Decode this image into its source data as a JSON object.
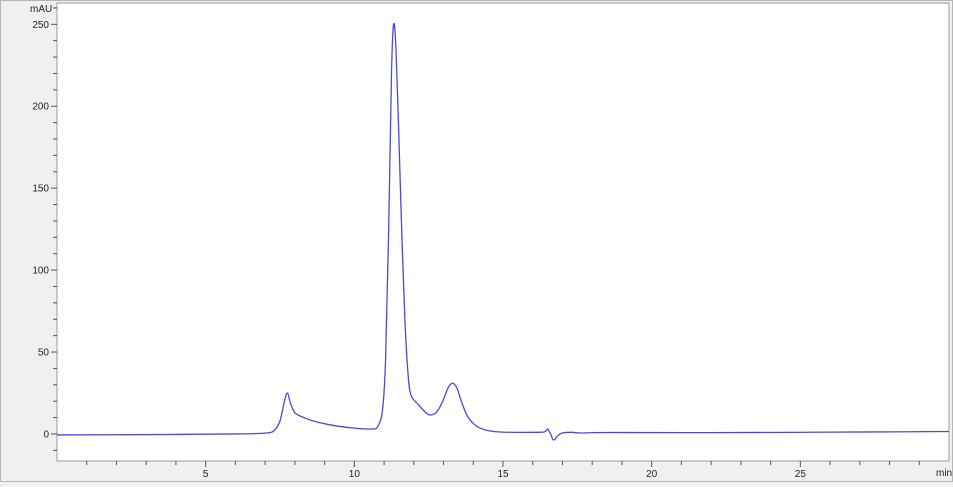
{
  "chart_data": {
    "type": "line",
    "title": "",
    "xlabel": "min",
    "ylabel": "mAU",
    "xlim": [
      0,
      30
    ],
    "ylim": [
      -16.5,
      263
    ],
    "x_ticks": [
      5,
      10,
      15,
      20,
      25
    ],
    "y_ticks": [
      0,
      50,
      100,
      150,
      200,
      250
    ],
    "x_minor_step": 1,
    "y_minor_step": 10,
    "grid": false,
    "line_color": "#4a4ad8",
    "series": [
      {
        "points": [
          [
            0,
            -0.6
          ],
          [
            3,
            -0.4
          ],
          [
            6,
            0
          ],
          [
            7.0,
            0.5
          ],
          [
            7.3,
            2
          ],
          [
            7.5,
            8
          ],
          [
            7.65,
            20
          ],
          [
            7.75,
            25
          ],
          [
            7.85,
            19
          ],
          [
            8.0,
            13
          ],
          [
            8.3,
            10
          ],
          [
            8.7,
            7.5
          ],
          [
            9.2,
            5.5
          ],
          [
            9.9,
            3.7
          ],
          [
            10.6,
            3
          ],
          [
            10.8,
            5
          ],
          [
            10.95,
            15
          ],
          [
            11.05,
            45
          ],
          [
            11.15,
            120
          ],
          [
            11.25,
            220
          ],
          [
            11.32,
            250
          ],
          [
            11.4,
            235
          ],
          [
            11.5,
            180
          ],
          [
            11.6,
            120
          ],
          [
            11.7,
            70
          ],
          [
            11.8,
            38
          ],
          [
            11.9,
            24
          ],
          [
            12.15,
            18
          ],
          [
            12.4,
            13
          ],
          [
            12.55,
            11.6
          ],
          [
            12.75,
            13
          ],
          [
            12.95,
            19
          ],
          [
            13.15,
            28
          ],
          [
            13.3,
            31
          ],
          [
            13.45,
            28
          ],
          [
            13.6,
            20
          ],
          [
            13.8,
            11
          ],
          [
            14.06,
            5.5
          ],
          [
            14.4,
            2.5
          ],
          [
            14.9,
            1.2
          ],
          [
            16.0,
            1.0
          ],
          [
            16.4,
            1.3
          ],
          [
            16.5,
            3
          ],
          [
            16.6,
            0
          ],
          [
            16.7,
            -3.7
          ],
          [
            16.85,
            -1
          ],
          [
            17.0,
            0.6
          ],
          [
            17.3,
            1.0
          ],
          [
            17.6,
            0.6
          ],
          [
            18.5,
            0.9
          ],
          [
            22,
            0.8
          ],
          [
            26,
            1.1
          ],
          [
            30,
            1.5
          ]
        ]
      }
    ]
  }
}
